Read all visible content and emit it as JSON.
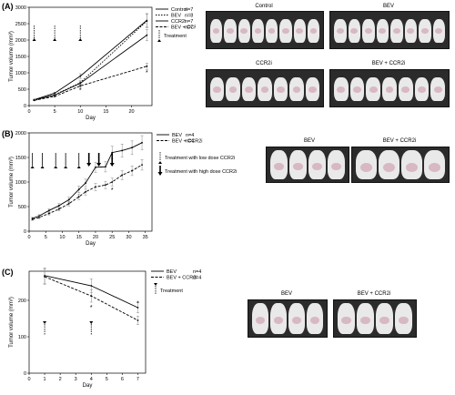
{
  "panels": [
    {
      "label": "(A)",
      "chart_data": {
        "type": "line",
        "xlabel": "Day",
        "ylabel": "Tumor volume (mm³)",
        "xlim": [
          0,
          24
        ],
        "ylim": [
          0,
          3000
        ],
        "xticks": [
          0,
          5,
          10,
          15,
          20
        ],
        "yticks": [
          0,
          500,
          1000,
          1500,
          2000,
          2500,
          3000
        ],
        "series": [
          {
            "name": "Control",
            "n": "n=7",
            "dash": "",
            "x": [
              1,
              5,
              10,
              23
            ],
            "y": [
              180,
              380,
              900,
              2600
            ]
          },
          {
            "name": "BEV",
            "n": "n=8",
            "dash": "1.5,1.5",
            "x": [
              1,
              5,
              10,
              23
            ],
            "y": [
              170,
              330,
              700,
              2580
            ]
          },
          {
            "name": "CCR2i",
            "n": "n=7",
            "dash": "",
            "x": [
              1,
              5,
              10,
              23
            ],
            "y": [
              170,
              320,
              680,
              2150
            ]
          },
          {
            "name": "BEV + CCR2i",
            "n": "n=7",
            "dash": "3,1.5",
            "x": [
              1,
              5,
              10,
              23
            ],
            "y": [
              160,
              280,
              600,
              1200
            ]
          }
        ],
        "treatment_days": [
          1,
          5,
          10
        ],
        "arrow_legend": "Treatment",
        "asterisks": [
          {
            "x": 10,
            "y": 400,
            "text": "*"
          },
          {
            "x": 23,
            "y": 950,
            "text": "*"
          }
        ]
      },
      "photos": [
        {
          "caption": "Control"
        },
        {
          "caption": "BEV"
        },
        {
          "caption": "CCR2i"
        },
        {
          "caption": "BEV + CCR2i"
        }
      ]
    },
    {
      "label": "(B)",
      "chart_data": {
        "type": "line",
        "xlabel": "Day",
        "ylabel": "Tumor volume (mm³)",
        "xlim": [
          0,
          37
        ],
        "ylim": [
          0,
          2000
        ],
        "xticks": [
          0,
          5,
          10,
          15,
          20,
          25,
          30,
          35
        ],
        "yticks": [
          0,
          500,
          1000,
          1500,
          2000
        ],
        "series": [
          {
            "name": "BEV",
            "n": "n=4",
            "dash": "",
            "x": [
              1,
              3,
              6,
              9,
              12,
              15,
              17,
              20,
              23,
              25,
              28,
              31,
              34
            ],
            "y": [
              260,
              310,
              420,
              520,
              640,
              850,
              980,
              1300,
              1310,
              1600,
              1640,
              1700,
              1800
            ]
          },
          {
            "name": "BEV + CCR2i",
            "n": "n=4",
            "dash": "3,1.5",
            "x": [
              1,
              3,
              6,
              9,
              12,
              15,
              17,
              20,
              23,
              25,
              28,
              31,
              34
            ],
            "y": [
              240,
              280,
              360,
              450,
              560,
              700,
              800,
              900,
              940,
              1000,
              1140,
              1230,
              1350
            ]
          }
        ],
        "low_dose_days": [
          1,
          4,
          8,
          11,
          15
        ],
        "high_dose_days": [
          18,
          21,
          25
        ],
        "arrow_legend_low": "Treatment with low dose CCR2i",
        "arrow_legend_high": "Treatment with high dose CCR2i",
        "asterisks": [
          {
            "x": 25,
            "y": 800,
            "text": "*"
          }
        ]
      },
      "photos": [
        {
          "caption": "BEV"
        },
        {
          "caption": "BEV + CCR2i"
        }
      ]
    },
    {
      "label": "(C)",
      "chart_data": {
        "type": "line",
        "xlabel": "Day",
        "ylabel": "Tumor volume (mm³)",
        "xlim": [
          0,
          7.5
        ],
        "ylim": [
          0,
          280
        ],
        "xticks": [
          0,
          1,
          2,
          3,
          4,
          5,
          6,
          7
        ],
        "yticks": [
          0,
          100,
          200
        ],
        "series": [
          {
            "name": "BEV",
            "n": "n=4",
            "dash": "",
            "x": [
              1,
              4,
              7
            ],
            "y": [
              268,
              240,
              180
            ]
          },
          {
            "name": "BEV + CCR2i",
            "n": "n=4",
            "dash": "3,1.5",
            "x": [
              1,
              4,
              7
            ],
            "y": [
              265,
              212,
              145
            ]
          }
        ],
        "treatment_days": [
          1,
          4
        ],
        "arrow_legend": "Treatment",
        "asterisks": [
          {
            "x": 4,
            "y": 175,
            "text": "*"
          },
          {
            "x": 7,
            "y": 186,
            "text": "*"
          }
        ]
      },
      "photos": [
        {
          "caption": "BEV"
        },
        {
          "caption": "BEV + CCR2i"
        }
      ]
    }
  ],
  "colors": {
    "line": "#000000",
    "photo_bg": "#2b2b2b",
    "mouse": "#e9e9e9",
    "tumor": "#d7b8c4"
  }
}
